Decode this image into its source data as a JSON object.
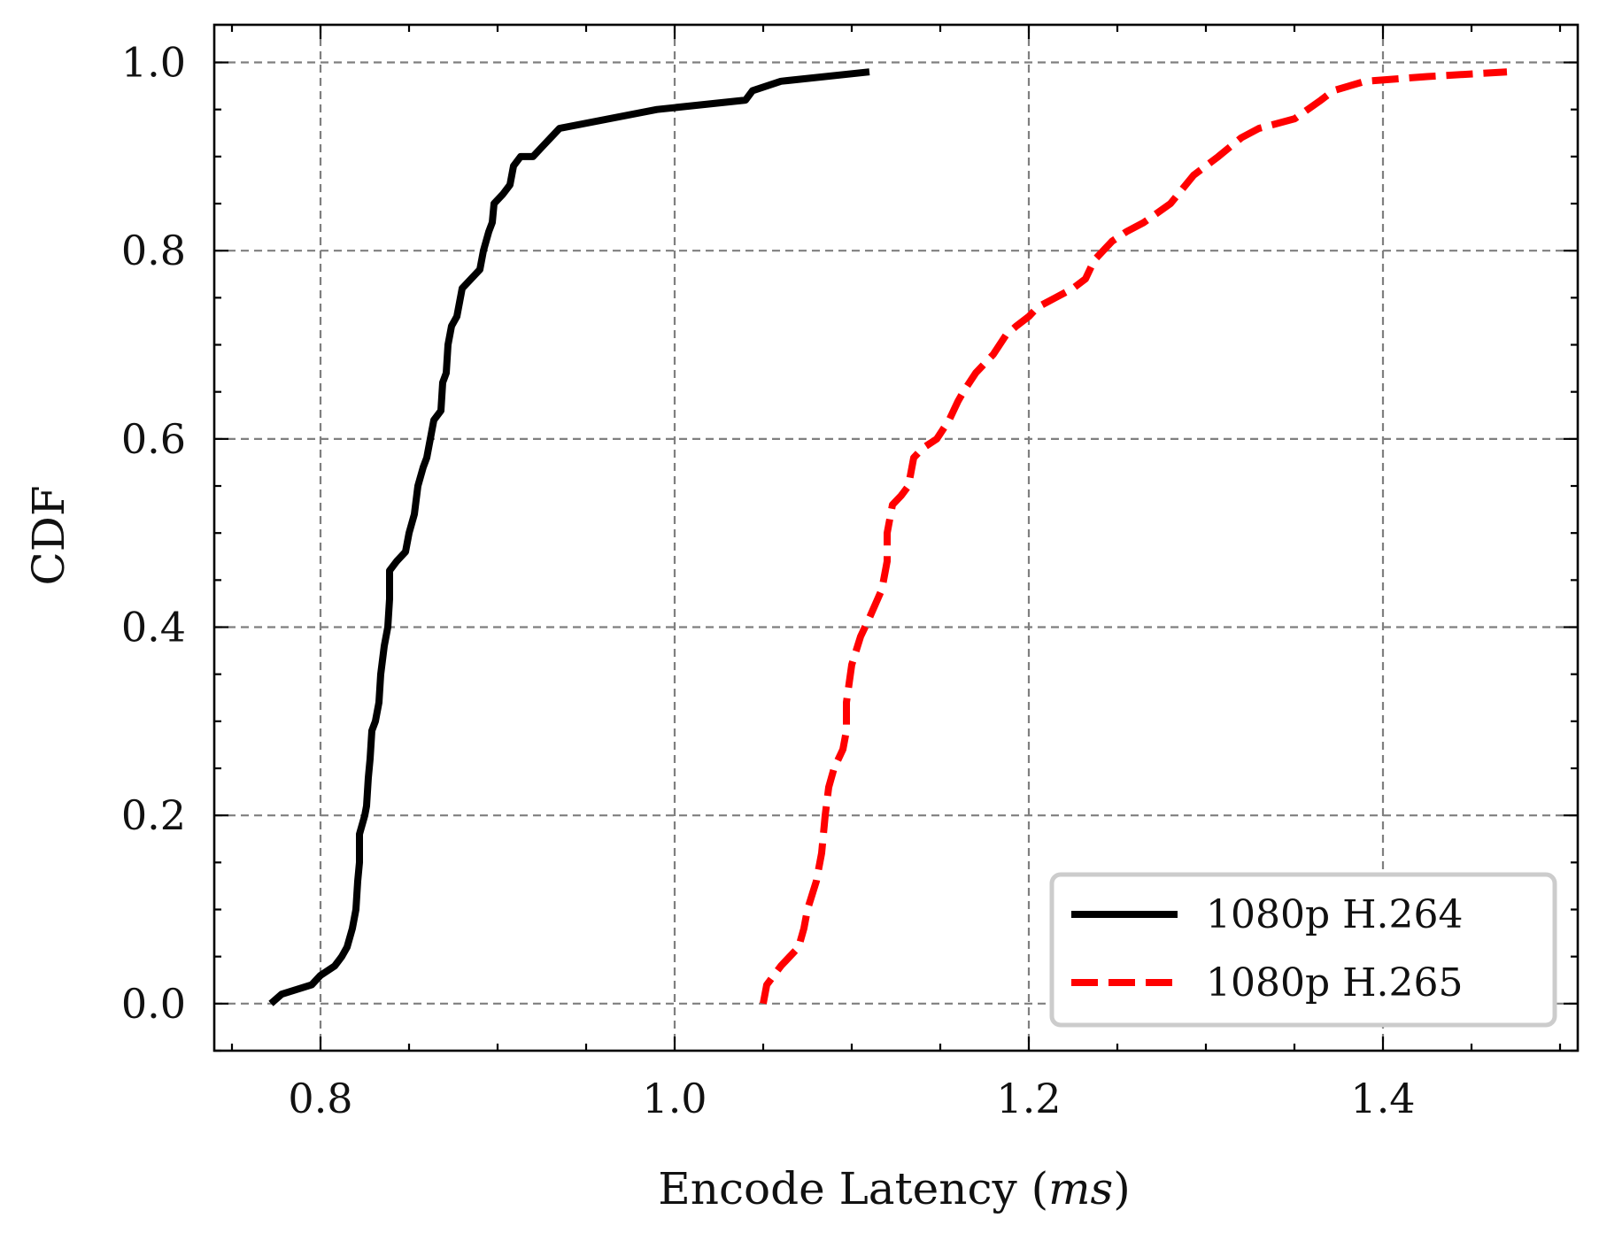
{
  "chart_data": {
    "type": "line",
    "title": "",
    "xlabel": "Encode Latency (",
    "xlabel_unit": "ms",
    "xlabel_close": ")",
    "ylabel": "CDF",
    "xlim": [
      0.74,
      1.51
    ],
    "ylim": [
      -0.05,
      1.04
    ],
    "x_ticks": [
      0.8,
      1.0,
      1.2,
      1.4
    ],
    "x_tick_labels": [
      "0.8",
      "1.0",
      "1.2",
      "1.4"
    ],
    "x_minor_step": 0.05,
    "y_ticks": [
      0.0,
      0.2,
      0.4,
      0.6,
      0.8,
      1.0
    ],
    "y_tick_labels": [
      "0.0",
      "0.2",
      "0.4",
      "0.6",
      "0.8",
      "1.0"
    ],
    "y_minor_step": 0.05,
    "grid": true,
    "legend_position": "bottom-right",
    "series": [
      {
        "name": "1080p H.264",
        "color": "#000000",
        "style": "solid",
        "points": [
          [
            0.772,
            0.0
          ],
          [
            0.778,
            0.01
          ],
          [
            0.795,
            0.02
          ],
          [
            0.8,
            0.03
          ],
          [
            0.808,
            0.04
          ],
          [
            0.812,
            0.05
          ],
          [
            0.815,
            0.06
          ],
          [
            0.818,
            0.08
          ],
          [
            0.82,
            0.1
          ],
          [
            0.821,
            0.13
          ],
          [
            0.822,
            0.15
          ],
          [
            0.822,
            0.18
          ],
          [
            0.825,
            0.2
          ],
          [
            0.826,
            0.21
          ],
          [
            0.827,
            0.24
          ],
          [
            0.828,
            0.26
          ],
          [
            0.829,
            0.29
          ],
          [
            0.831,
            0.3
          ],
          [
            0.833,
            0.32
          ],
          [
            0.834,
            0.35
          ],
          [
            0.836,
            0.38
          ],
          [
            0.838,
            0.4
          ],
          [
            0.839,
            0.43
          ],
          [
            0.839,
            0.46
          ],
          [
            0.843,
            0.47
          ],
          [
            0.848,
            0.48
          ],
          [
            0.85,
            0.5
          ],
          [
            0.853,
            0.52
          ],
          [
            0.855,
            0.55
          ],
          [
            0.858,
            0.57
          ],
          [
            0.86,
            0.58
          ],
          [
            0.862,
            0.6
          ],
          [
            0.864,
            0.62
          ],
          [
            0.868,
            0.63
          ],
          [
            0.869,
            0.66
          ],
          [
            0.871,
            0.67
          ],
          [
            0.872,
            0.7
          ],
          [
            0.874,
            0.72
          ],
          [
            0.877,
            0.73
          ],
          [
            0.88,
            0.76
          ],
          [
            0.885,
            0.77
          ],
          [
            0.89,
            0.78
          ],
          [
            0.892,
            0.8
          ],
          [
            0.895,
            0.82
          ],
          [
            0.897,
            0.83
          ],
          [
            0.898,
            0.85
          ],
          [
            0.903,
            0.86
          ],
          [
            0.907,
            0.87
          ],
          [
            0.909,
            0.89
          ],
          [
            0.913,
            0.9
          ],
          [
            0.92,
            0.9
          ],
          [
            0.925,
            0.91
          ],
          [
            0.935,
            0.93
          ],
          [
            0.99,
            0.95
          ],
          [
            1.04,
            0.96
          ],
          [
            1.044,
            0.97
          ],
          [
            1.06,
            0.98
          ],
          [
            1.11,
            0.99
          ]
        ]
      },
      {
        "name": "1080p H.265",
        "color": "#ff0000",
        "style": "dashed",
        "points": [
          [
            1.05,
            0.0
          ],
          [
            1.052,
            0.02
          ],
          [
            1.06,
            0.04
          ],
          [
            1.07,
            0.06
          ],
          [
            1.073,
            0.08
          ],
          [
            1.075,
            0.1
          ],
          [
            1.08,
            0.13
          ],
          [
            1.083,
            0.16
          ],
          [
            1.085,
            0.2
          ],
          [
            1.087,
            0.23
          ],
          [
            1.09,
            0.25
          ],
          [
            1.095,
            0.27
          ],
          [
            1.097,
            0.29
          ],
          [
            1.097,
            0.32
          ],
          [
            1.1,
            0.36
          ],
          [
            1.105,
            0.39
          ],
          [
            1.11,
            0.41
          ],
          [
            1.117,
            0.44
          ],
          [
            1.12,
            0.47
          ],
          [
            1.12,
            0.5
          ],
          [
            1.123,
            0.53
          ],
          [
            1.128,
            0.54
          ],
          [
            1.132,
            0.55
          ],
          [
            1.135,
            0.58
          ],
          [
            1.14,
            0.59
          ],
          [
            1.148,
            0.6
          ],
          [
            1.155,
            0.62
          ],
          [
            1.16,
            0.64
          ],
          [
            1.163,
            0.65
          ],
          [
            1.17,
            0.67
          ],
          [
            1.18,
            0.69
          ],
          [
            1.187,
            0.71
          ],
          [
            1.193,
            0.72
          ],
          [
            1.2,
            0.73
          ],
          [
            1.205,
            0.74
          ],
          [
            1.215,
            0.75
          ],
          [
            1.225,
            0.76
          ],
          [
            1.232,
            0.77
          ],
          [
            1.237,
            0.79
          ],
          [
            1.247,
            0.81
          ],
          [
            1.255,
            0.82
          ],
          [
            1.265,
            0.83
          ],
          [
            1.28,
            0.85
          ],
          [
            1.293,
            0.88
          ],
          [
            1.307,
            0.9
          ],
          [
            1.32,
            0.92
          ],
          [
            1.33,
            0.93
          ],
          [
            1.35,
            0.94
          ],
          [
            1.365,
            0.96
          ],
          [
            1.372,
            0.97
          ],
          [
            1.39,
            0.98
          ],
          [
            1.425,
            0.985
          ],
          [
            1.47,
            0.99
          ]
        ]
      }
    ]
  }
}
